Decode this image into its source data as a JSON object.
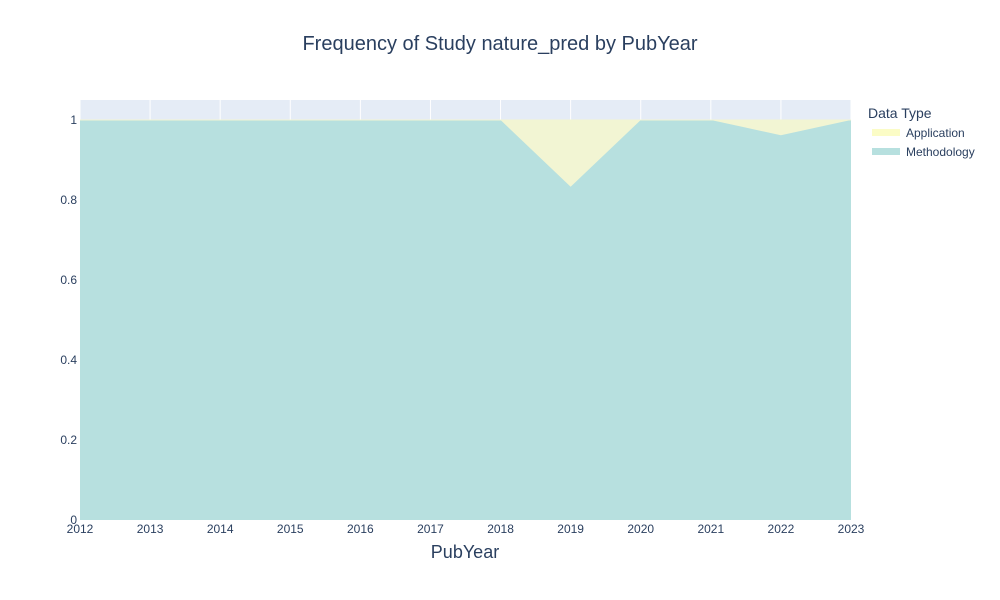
{
  "chart_data": {
    "type": "area",
    "title": "Frequency of Study nature_pred by PubYear",
    "xlabel": "PubYear",
    "ylabel": "",
    "x": [
      2012,
      2013,
      2014,
      2015,
      2016,
      2017,
      2018,
      2019,
      2020,
      2021,
      2022,
      2023
    ],
    "xticks": [
      "2012",
      "2013",
      "2014",
      "2015",
      "2016",
      "2017",
      "2018",
      "2019",
      "2020",
      "2021",
      "2022",
      "2023"
    ],
    "yticks": [
      "0",
      "0.2",
      "0.4",
      "0.6",
      "0.8",
      "1"
    ],
    "ylim": [
      0,
      1.05
    ],
    "stacked": true,
    "series": [
      {
        "name": "Methodology",
        "color": "#b7e0df",
        "values": [
          1,
          1,
          1,
          1,
          1,
          1,
          1,
          0.833,
          1,
          1,
          0.962,
          1
        ]
      },
      {
        "name": "Application",
        "color": "#f2f5d3",
        "legend_color": "#fbfcc6",
        "values": [
          0,
          0,
          0,
          0,
          0,
          0,
          0,
          0.167,
          0,
          0,
          0.038,
          0
        ]
      }
    ],
    "legend": {
      "title": "Data Type",
      "position": "right"
    },
    "grid": true,
    "plot_background": "#e5ecf6"
  }
}
